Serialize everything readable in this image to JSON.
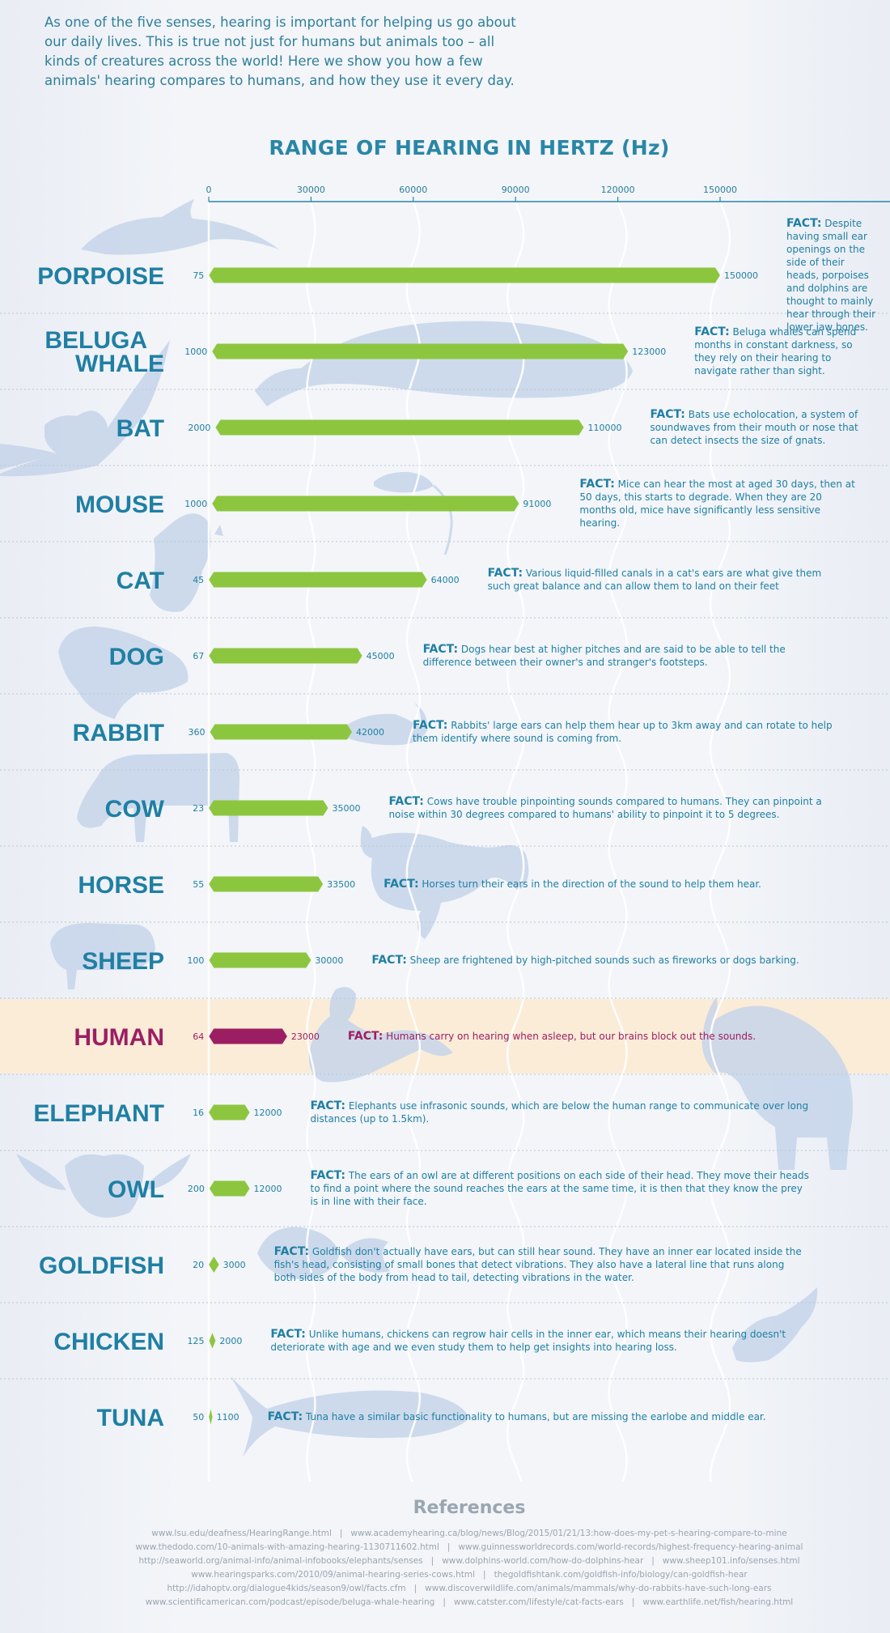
{
  "intro": "As one of the five senses, hearing is important for helping us go about our daily lives. This is true not just for humans but animals too – all kinds of creatures across the world! Here we show you how a few animals' hearing compares to humans, and how they use it every day.",
  "chart_title": "RANGE OF HEARING IN HERTZ (Hz)",
  "fact_prefix": "FACT:",
  "colors": {
    "bar": "#8cc63f",
    "human_bar": "#9c1e62",
    "human_band": "#fbecd8",
    "text": "#1f7fa3",
    "human_text": "#9c1e62",
    "silhouette": "#c6d5ea"
  },
  "chart_data": {
    "type": "range-bar",
    "title": "RANGE OF HEARING IN HERTZ (Hz)",
    "xlim": [
      0,
      175000
    ],
    "x_ticks": [
      0,
      30000,
      60000,
      90000,
      120000,
      150000
    ],
    "x_tick_labels": [
      "0",
      "30000",
      "60000",
      "90000",
      "120000",
      "150000"
    ],
    "series": [
      {
        "name": "PORPOISE",
        "low": 75,
        "high": 150000,
        "low_label": "75",
        "high_label": "150000",
        "fact": "Despite having small ear openings on the side of their heads, porpoises and dolphins are thought to mainly hear through their lower jaw bones."
      },
      {
        "name": "BELUGA WHALE",
        "low": 1000,
        "high": 123000,
        "low_label": "1000",
        "high_label": "123000",
        "fact": "Beluga whales can spend months in constant darkness, so they rely on their hearing to navigate rather than sight."
      },
      {
        "name": "BAT",
        "low": 2000,
        "high": 110000,
        "low_label": "2000",
        "high_label": "110000",
        "fact": "Bats use echolocation, a system of soundwaves from their mouth or nose that can detect insects the size of gnats."
      },
      {
        "name": "MOUSE",
        "low": 1000,
        "high": 91000,
        "low_label": "1000",
        "high_label": "91000",
        "fact": "Mice can hear the most at aged 30 days, then at 50 days, this starts to degrade. When they are 20 months old, mice have significantly less sensitive hearing."
      },
      {
        "name": "CAT",
        "low": 45,
        "high": 64000,
        "low_label": "45",
        "high_label": "64000",
        "fact": "Various liquid-filled canals in a cat's ears are what give them such great balance and can allow them to land on their feet"
      },
      {
        "name": "DOG",
        "low": 67,
        "high": 45000,
        "low_label": "67",
        "high_label": "45000",
        "fact": "Dogs hear best at higher pitches and are said to be able to tell the difference between their owner's and stranger's footsteps."
      },
      {
        "name": "RABBIT",
        "low": 360,
        "high": 42000,
        "low_label": "360",
        "high_label": "42000",
        "fact": "Rabbits' large ears can help them hear up to 3km away and can rotate to help them identify where sound is coming from."
      },
      {
        "name": "COW",
        "low": 23,
        "high": 35000,
        "low_label": "23",
        "high_label": "35000",
        "fact": "Cows have trouble pinpointing sounds compared to humans. They can pinpoint a noise within 30 degrees compared to humans' ability to pinpoint it to 5 degrees."
      },
      {
        "name": "HORSE",
        "low": 55,
        "high": 33500,
        "low_label": "55",
        "high_label": "33500",
        "fact": "Horses turn their ears in the direction of the sound to help them hear."
      },
      {
        "name": "SHEEP",
        "low": 100,
        "high": 30000,
        "low_label": "100",
        "high_label": "30000",
        "fact": "Sheep are frightened by high-pitched sounds such as fireworks or dogs barking."
      },
      {
        "name": "HUMAN",
        "low": 64,
        "high": 23000,
        "low_label": "64",
        "high_label": "23000",
        "highlight": true,
        "fact": "Humans carry on hearing when asleep, but our brains block out the sounds."
      },
      {
        "name": "ELEPHANT",
        "low": 16,
        "high": 12000,
        "low_label": "16",
        "high_label": "12000",
        "fact": "Elephants use infrasonic sounds, which are below the human range to communicate over long distances (up to 1.5km)."
      },
      {
        "name": "OWL",
        "low": 200,
        "high": 12000,
        "low_label": "200",
        "high_label": "12000",
        "fact": "The ears of an owl are at different positions on each side of their head. They move their heads to find a point where the sound reaches the ears at the same time, it is then that they know the prey is in line with their face."
      },
      {
        "name": "GOLDFISH",
        "low": 20,
        "high": 3000,
        "low_label": "20",
        "high_label": "3000",
        "fact": "Goldfish don't actually have ears, but can still hear sound. They have an inner ear located inside the fish's head, consisting of small bones that detect vibrations. They also have a lateral line that runs along both sides of the body from head to tail, detecting vibrations in the water."
      },
      {
        "name": "CHICKEN",
        "low": 125,
        "high": 2000,
        "low_label": "125",
        "high_label": "2000",
        "fact": "Unlike humans, chickens can regrow hair cells in the inner ear, which means their hearing doesn't deteriorate with age and we even study them to help get insights into hearing loss."
      },
      {
        "name": "TUNA",
        "low": 50,
        "high": 1100,
        "low_label": "50",
        "high_label": "1100",
        "fact": "Tuna have a similar basic functionality to humans, but are missing the earlobe and middle ear."
      }
    ]
  },
  "references": {
    "heading": "References",
    "lines": [
      [
        "www.lsu.edu/deafness/HearingRange.html",
        "www.academyhearing.ca/blog/news/Blog/2015/01/21/13:how-does-my-pet-s-hearing-compare-to-mine"
      ],
      [
        "www.thedodo.com/10-animals-with-amazing-hearing-1130711602.html",
        "www.guinnessworldrecords.com/world-records/highest-frequency-hearing-animal"
      ],
      [
        "http://seaworld.org/animal-info/animal-infobooks/elephants/senses",
        "www.dolphins-world.com/how-do-dolphins-hear",
        "www.sheep101.info/senses.html"
      ],
      [
        "www.hearingsparks.com/2010/09/animal-hearing-series-cows.html",
        "thegoldfishtank.com/goldfish-info/biology/can-goldfish-hear"
      ],
      [
        "http://idahoptv.org/dialogue4kids/season9/owl/facts.cfm",
        "www.discoverwildlife.com/animals/mammals/why-do-rabbits-have-such-long-ears"
      ],
      [
        "www.scientificamerican.com/podcast/episode/beluga-whale-hearing",
        "www.catster.com/lifestyle/cat-facts-ears",
        "www.earthlife.net/fish/hearing.html"
      ]
    ]
  }
}
